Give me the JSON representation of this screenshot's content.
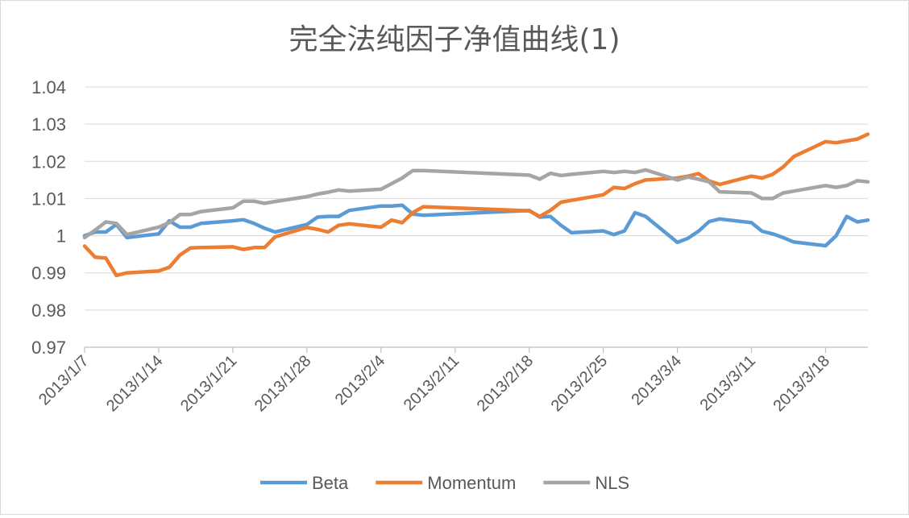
{
  "chart_data": {
    "type": "line",
    "title": "完全法纯因子净值曲线(1)",
    "xlabel": "",
    "ylabel": "",
    "ylim": [
      0.97,
      1.04
    ],
    "yticks": [
      "1.04",
      "1.03",
      "1.02",
      "1.01",
      "1",
      "0.99",
      "0.98",
      "0.97"
    ],
    "x_range": [
      "2013/1/7",
      "2013/3/22"
    ],
    "x_tick_labels": [
      "2013/1/7",
      "2013/1/14",
      "2013/1/21",
      "2013/1/28",
      "2013/2/4",
      "2013/2/11",
      "2013/2/18",
      "2013/2/25",
      "2013/3/4",
      "2013/3/11",
      "2013/3/18"
    ],
    "grid": true,
    "legend": "bottom",
    "dates": [
      "2013/1/7",
      "2013/1/8",
      "2013/1/9",
      "2013/1/10",
      "2013/1/11",
      "2013/1/14",
      "2013/1/15",
      "2013/1/16",
      "2013/1/17",
      "2013/1/18",
      "2013/1/21",
      "2013/1/22",
      "2013/1/23",
      "2013/1/24",
      "2013/1/25",
      "2013/1/28",
      "2013/1/29",
      "2013/1/30",
      "2013/1/31",
      "2013/2/1",
      "2013/2/4",
      "2013/2/5",
      "2013/2/6",
      "2013/2/7",
      "2013/2/8",
      "2013/2/18",
      "2013/2/19",
      "2013/2/20",
      "2013/2/21",
      "2013/2/22",
      "2013/2/25",
      "2013/2/26",
      "2013/2/27",
      "2013/2/28",
      "2013/3/1",
      "2013/3/4",
      "2013/3/5",
      "2013/3/6",
      "2013/3/7",
      "2013/3/8",
      "2013/3/11",
      "2013/3/12",
      "2013/3/13",
      "2013/3/14",
      "2013/3/15",
      "2013/3/18",
      "2013/3/19",
      "2013/3/20",
      "2013/3/21",
      "2013/3/22"
    ],
    "series": [
      {
        "name": "Beta",
        "color": "#5b9bd5",
        "values": [
          1.0,
          1.001,
          1.001,
          1.003,
          0.9995,
          1.0005,
          1.004,
          1.0023,
          1.0023,
          1.0033,
          1.004,
          1.0043,
          1.0033,
          1.002,
          1.001,
          1.003,
          1.005,
          1.0052,
          1.0052,
          1.0068,
          1.008,
          1.008,
          1.0082,
          1.0058,
          1.0055,
          1.0068,
          1.005,
          1.0052,
          1.0028,
          1.0008,
          1.0013,
          1.0003,
          1.0013,
          1.0062,
          1.0052,
          0.9982,
          0.9993,
          1.0012,
          1.0038,
          1.0045,
          1.0035,
          1.0012,
          1.0005,
          0.9995,
          0.9983,
          0.9973,
          1.0,
          1.0052,
          1.0037,
          1.0042
        ]
      },
      {
        "name": "Momentum",
        "color": "#ed7d31",
        "values": [
          0.9972,
          0.9942,
          0.994,
          0.9893,
          0.99,
          0.9905,
          0.9915,
          0.9948,
          0.9967,
          0.9968,
          0.997,
          0.9963,
          0.9968,
          0.9968,
          0.9997,
          1.0022,
          1.0017,
          1.001,
          1.0028,
          1.0032,
          1.0023,
          1.0042,
          1.0035,
          1.0062,
          1.0078,
          1.0067,
          1.0052,
          1.0068,
          1.009,
          1.0095,
          1.011,
          1.013,
          1.0127,
          1.014,
          1.015,
          1.0155,
          1.016,
          1.0167,
          1.0147,
          1.0138,
          1.016,
          1.0155,
          1.0165,
          1.0185,
          1.0213,
          1.0253,
          1.025,
          1.0255,
          1.026,
          1.0273
        ]
      },
      {
        "name": "NLS",
        "color": "#a5a5a5",
        "values": [
          0.9995,
          1.0015,
          1.0037,
          1.0033,
          1.0003,
          1.0023,
          1.0035,
          1.0057,
          1.0057,
          1.0065,
          1.0075,
          1.0093,
          1.0093,
          1.0087,
          1.0092,
          1.0105,
          1.0112,
          1.0117,
          1.0123,
          1.012,
          1.0125,
          1.014,
          1.0155,
          1.0175,
          1.0175,
          1.0163,
          1.0152,
          1.0168,
          1.0162,
          1.0165,
          1.0173,
          1.017,
          1.0173,
          1.017,
          1.0177,
          1.015,
          1.0158,
          1.0152,
          1.0145,
          1.0118,
          1.0115,
          1.01,
          1.01,
          1.0115,
          1.012,
          1.0135,
          1.013,
          1.0135,
          1.0148,
          1.0145
        ]
      }
    ]
  }
}
